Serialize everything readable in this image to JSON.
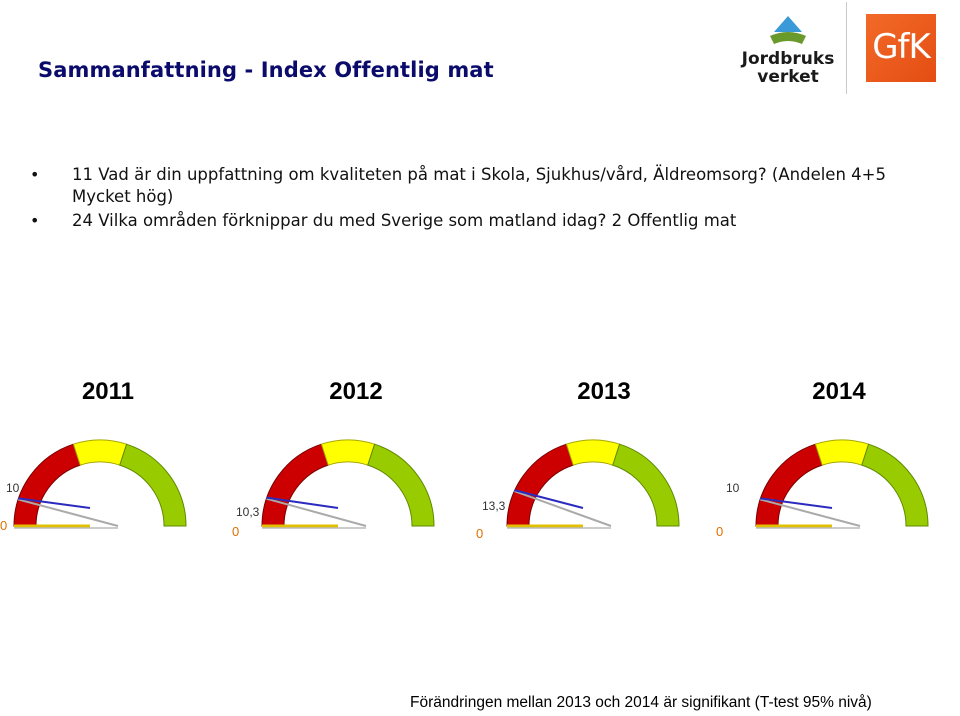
{
  "header": {
    "title": "Sammanfattning - Index Offentlig mat"
  },
  "logos": {
    "jordbruksverket_line1": "Jordbruks",
    "jordbruksverket_line2": "verket",
    "gfk": "GfK"
  },
  "bullets": [
    "11 Vad är din uppfattning om kvaliteten på mat i Skola, Sjukhus/vård, Äldreomsorg? (Andelen 4+5 Mycket hög)",
    "24 Vilka områden förknippar du med Sverige som matland idag? 2 Offentlig mat"
  ],
  "colors": {
    "red": "#cc0000",
    "yellow": "#ffff00",
    "green": "#99cc00",
    "needle": "#2b2bbf",
    "baseline": "#e0c000",
    "title": "#0b0b6b"
  },
  "chart_data": [
    {
      "type": "gauge",
      "year": "2011",
      "value": 10,
      "value_label": "10",
      "min_label": "0",
      "range": [
        0,
        100
      ]
    },
    {
      "type": "gauge",
      "year": "2012",
      "value": 10.3,
      "value_label": "10,3",
      "min_label": "0",
      "range": [
        0,
        100
      ]
    },
    {
      "type": "gauge",
      "year": "2013",
      "value": 13.3,
      "value_label": "13,3",
      "min_label": "0",
      "range": [
        0,
        100
      ]
    },
    {
      "type": "gauge",
      "year": "2014",
      "value": 10,
      "value_label": "10",
      "min_label": "0",
      "range": [
        0,
        100
      ]
    }
  ],
  "footer": {
    "note": "Förändringen mellan 2013 och 2014 är signifikant (T-test 95% nivå)"
  }
}
